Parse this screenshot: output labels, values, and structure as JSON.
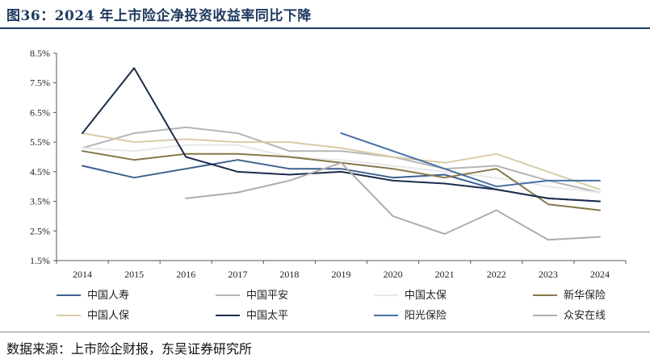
{
  "figure": {
    "title": "图36：2024 年上市险企净投资收益率同比下降",
    "source": "数据来源：上市险企财报，东吴证券研究所"
  },
  "chart_data": {
    "type": "line",
    "title": "",
    "xlabel": "",
    "ylabel": "",
    "x": [
      "2014",
      "2015",
      "2016",
      "2017",
      "2018",
      "2019",
      "2020",
      "2021",
      "2022",
      "2023",
      "2024"
    ],
    "ylim": [
      1.5,
      8.5
    ],
    "yticks": [
      1.5,
      2.5,
      3.5,
      4.5,
      5.5,
      6.5,
      7.5,
      8.5
    ],
    "ytick_labels": [
      "1.5%",
      "2.5%",
      "3.5%",
      "4.5%",
      "5.5%",
      "6.5%",
      "7.5%",
      "8.5%"
    ],
    "grid": false,
    "legend_position": "bottom",
    "series": [
      {
        "name": "中国人寿",
        "color": "#3d5f8f",
        "values": [
          4.7,
          4.3,
          4.6,
          4.9,
          4.6,
          4.6,
          4.3,
          4.4,
          3.9,
          3.6,
          3.5
        ]
      },
      {
        "name": "中国平安",
        "color": "#b5b5b5",
        "values": [
          5.3,
          5.8,
          6.0,
          5.8,
          5.2,
          5.2,
          5.0,
          4.6,
          4.7,
          4.2,
          3.8
        ]
      },
      {
        "name": "中国太保",
        "color": "#e8e8e8",
        "values": [
          5.3,
          5.2,
          5.4,
          5.4,
          5.0,
          4.9,
          4.7,
          4.5,
          4.3,
          4.0,
          3.8
        ]
      },
      {
        "name": "新华保险",
        "color": "#857748",
        "values": [
          5.2,
          4.9,
          5.1,
          5.1,
          5.0,
          4.8,
          4.6,
          4.3,
          4.6,
          3.4,
          3.2
        ]
      },
      {
        "name": "中国人保",
        "color": "#d8cba8",
        "values": [
          5.8,
          5.5,
          5.6,
          5.5,
          5.5,
          5.3,
          5.0,
          4.8,
          5.1,
          4.5,
          3.9
        ]
      },
      {
        "name": "中国太平",
        "color": "#1b2d4a",
        "values": [
          5.8,
          8.0,
          5.0,
          4.5,
          4.4,
          4.5,
          4.2,
          4.1,
          3.9,
          3.6,
          3.5
        ]
      },
      {
        "name": "阳光保险",
        "color": "#4671a3",
        "values": [
          null,
          null,
          null,
          null,
          null,
          5.8,
          5.2,
          4.6,
          4.0,
          4.2,
          4.2
        ]
      },
      {
        "name": "众安在线",
        "color": "#adadad",
        "values": [
          null,
          null,
          3.6,
          3.8,
          4.2,
          4.8,
          3.0,
          2.4,
          3.2,
          2.2,
          2.3
        ]
      }
    ]
  }
}
